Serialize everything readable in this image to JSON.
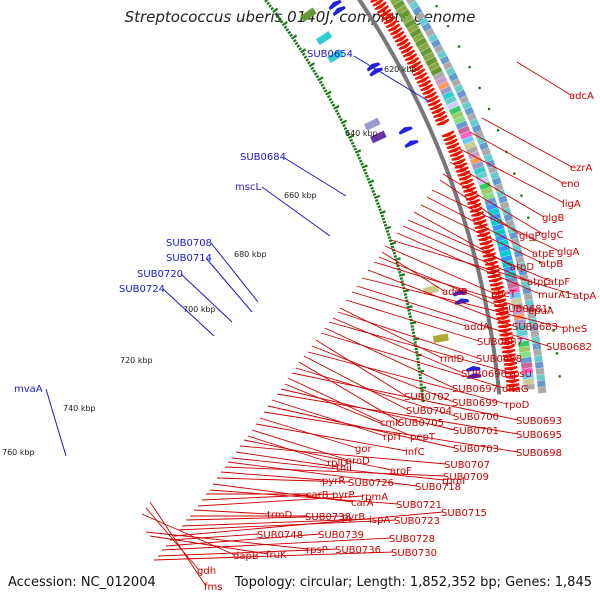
{
  "title": "Streptococcus uberis 0140J, complete genome",
  "accession": "Accession: NC_012004",
  "summary": "Topology: circular; Length: 1,852,352 bp; Genes: 1,845",
  "tick_labels": [
    "620 kbp",
    "640 kbp",
    "660 kbp",
    "680 kbp",
    "700 kbp",
    "720 kbp",
    "740 kbp",
    "760 kbp"
  ],
  "inner_genes": [
    "SUB0654",
    "SUB0684",
    "mscL",
    "SUB0708",
    "SUB0714",
    "SUB0720",
    "SUB0724",
    "mvaA"
  ],
  "outer_genes": [
    "adcA",
    "ezrA",
    "eno",
    "ligA",
    "glgB",
    "glgC",
    "glgP",
    "glgA",
    "atpE",
    "atpB",
    "atpD",
    "atpF",
    "atpC",
    "murA1",
    "atpA",
    "addB",
    "pheT",
    "SUB0681",
    "epuA",
    "SUB0683",
    "pheS",
    "SUB0682",
    "addA",
    "SUB0687",
    "rmlD",
    "SUB0688",
    "SUB0696",
    "rpsU",
    "SUB0697",
    "dnaG",
    "SUB0702",
    "SUB0699",
    "rpoD",
    "SUB0704",
    "SUB0705",
    "SUB0700",
    "SUB0693",
    "cmk",
    "pepT",
    "SUB0701",
    "SUB0695",
    "rplT",
    "SUB0703",
    "SUB0698",
    "gor",
    "infC",
    "aroD",
    "rplU",
    "aroF",
    "SUB0707",
    "thiI",
    "rpmI",
    "SUB0718",
    "SUB0709",
    "pyrR",
    "SUB0726",
    "carA",
    "SUB0721",
    "carB",
    "pyrP",
    "rpmA",
    "trmD",
    "SUB0738",
    "pyrB",
    "lspA",
    "SUB0723",
    "SUB0715",
    "SUB0748",
    "SUB0739",
    "SUB0728",
    "SUB0736",
    "SUB0730",
    "fruK",
    "rpsP",
    "dapB",
    "gdh",
    "fms"
  ],
  "colors": {
    "forward": "#ee1100",
    "reverse": "#2222dd",
    "backbone": "#777777",
    "tick": "#1a7a1a",
    "label_blue": "#1a1acc",
    "label_red": "#cc0000"
  },
  "icons": {
    "forward_gene": "red-arrow",
    "reverse_gene": "blue-arrow"
  }
}
